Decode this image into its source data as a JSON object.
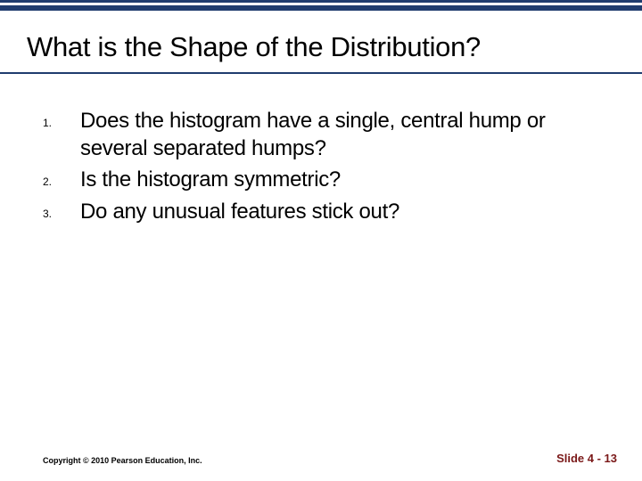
{
  "header": {
    "title": "What is the Shape of the Distribution?",
    "border_color": "#1f3c6e"
  },
  "list": {
    "items": [
      {
        "number": "1.",
        "text": "Does the histogram have a single, central hump or several separated humps?"
      },
      {
        "number": "2.",
        "text": "Is the histogram symmetric?"
      },
      {
        "number": "3.",
        "text": "Do any unusual features stick out?"
      }
    ]
  },
  "footer": {
    "copyright": "Copyright © 2010 Pearson Education, Inc.",
    "slide_number": "Slide 4 - 13",
    "slide_number_color": "#7a1818"
  },
  "styling": {
    "background_color": "#ffffff",
    "title_fontsize": 31,
    "list_text_fontsize": 24,
    "list_number_fontsize": 12,
    "copyright_fontsize": 9,
    "slide_number_fontsize": 13
  }
}
